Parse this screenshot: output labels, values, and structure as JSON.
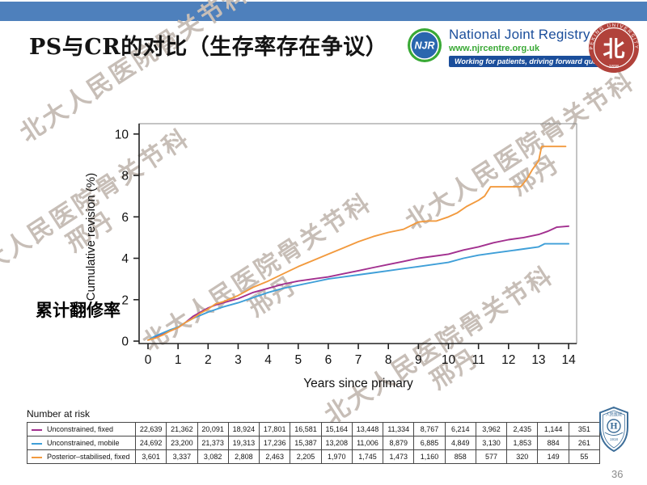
{
  "slide": {
    "title": "PS与CR的对比（生存率存在争议）",
    "page_number": "36",
    "accent_bar_color": "#4E80BC",
    "side_label": "累计翻修率",
    "watermark": {
      "line1": "北大人民医院骨关节科",
      "line2": "邢丹"
    }
  },
  "njr_logo": {
    "abbr": "NJR",
    "name": "National Joint Registry",
    "url": "www.njrcentre.org.uk",
    "tagline": "Working for patients, driving forward quality",
    "ring_color": "#39A935",
    "disc_color": "#2A66AE",
    "name_color": "#1B4E9B",
    "banner_color": "#1B4E9B"
  },
  "pku_seal": {
    "arc_text": "PEKING UNIVERSITY",
    "year": "1898",
    "glyph": "北",
    "color": "#B1423B"
  },
  "hospital_badge": {
    "top_text": "人民医院",
    "year": "1918",
    "glyph": "H",
    "color": "#3D6E99"
  },
  "chart_data": {
    "type": "line",
    "title": "",
    "xlabel": "Years since primary",
    "ylabel": "Cumulative revision (%)",
    "xlim": [
      0,
      14
    ],
    "ylim": [
      0,
      10
    ],
    "xticks": [
      0,
      1,
      2,
      3,
      4,
      5,
      6,
      7,
      8,
      9,
      10,
      11,
      12,
      13,
      14
    ],
    "yticks": [
      0,
      2,
      4,
      6,
      8,
      10
    ],
    "grid": false,
    "legend_position": "bottom-table",
    "series": [
      {
        "name": "Unconstrained, fixed",
        "color": "#A2308F",
        "x": [
          0,
          0.25,
          0.5,
          0.75,
          1,
          1.25,
          1.5,
          1.75,
          2,
          2.25,
          2.5,
          2.75,
          3,
          3.5,
          4,
          4.5,
          5,
          5.5,
          6,
          6.5,
          7,
          7.5,
          8,
          8.5,
          9,
          9.5,
          10,
          10.5,
          11,
          11.5,
          12,
          12.5,
          13,
          13.3,
          13.6,
          14
        ],
        "y": [
          0.05,
          0.2,
          0.35,
          0.5,
          0.65,
          0.9,
          1.2,
          1.4,
          1.6,
          1.75,
          1.85,
          1.95,
          2.05,
          2.35,
          2.55,
          2.75,
          2.9,
          3.0,
          3.1,
          3.25,
          3.4,
          3.55,
          3.7,
          3.85,
          4.0,
          4.1,
          4.2,
          4.4,
          4.55,
          4.75,
          4.9,
          5.0,
          5.15,
          5.3,
          5.5,
          5.55
        ]
      },
      {
        "name": "Unconstrained, mobile",
        "color": "#3F9FD8",
        "x": [
          0,
          0.25,
          0.5,
          0.75,
          1,
          1.25,
          1.5,
          1.75,
          2,
          2.5,
          3,
          3.5,
          4,
          4.5,
          5,
          5.5,
          6,
          6.5,
          7,
          7.5,
          8,
          8.5,
          9,
          9.5,
          10,
          10.5,
          11,
          11.5,
          12,
          12.5,
          13,
          13.2,
          14
        ],
        "y": [
          0.05,
          0.25,
          0.4,
          0.55,
          0.68,
          0.9,
          1.1,
          1.25,
          1.4,
          1.65,
          1.85,
          2.1,
          2.35,
          2.55,
          2.7,
          2.85,
          3.0,
          3.1,
          3.2,
          3.3,
          3.4,
          3.5,
          3.6,
          3.7,
          3.8,
          4.0,
          4.15,
          4.25,
          4.35,
          4.45,
          4.55,
          4.7,
          4.7
        ]
      },
      {
        "name": "Posterior–stabilised, fixed",
        "color": "#F29A3E",
        "x": [
          0,
          0.25,
          0.5,
          0.75,
          1,
          1.25,
          1.5,
          1.75,
          2,
          2.25,
          2.5,
          2.75,
          3,
          3.5,
          4,
          4.5,
          5,
          5.5,
          6,
          6.5,
          7,
          7.5,
          8,
          8.5,
          9,
          9.3,
          9.6,
          10,
          10.3,
          10.6,
          11,
          11.2,
          11.4,
          12.4,
          12.6,
          12.8,
          13,
          13.1,
          13.9
        ],
        "y": [
          0.05,
          0.15,
          0.3,
          0.5,
          0.65,
          0.9,
          1.1,
          1.35,
          1.55,
          1.8,
          1.9,
          2.05,
          2.2,
          2.6,
          2.9,
          3.25,
          3.6,
          3.9,
          4.2,
          4.5,
          4.8,
          5.05,
          5.25,
          5.4,
          5.75,
          5.8,
          5.8,
          6.0,
          6.2,
          6.5,
          6.8,
          7.0,
          7.45,
          7.45,
          7.8,
          8.3,
          8.7,
          9.4,
          9.4
        ]
      }
    ],
    "number_at_risk": {
      "title": "Number at risk",
      "rows": [
        {
          "label": "Unconstrained, fixed",
          "color": "#A2308F",
          "values": [
            "22,639",
            "21,362",
            "20,091",
            "18,924",
            "17,801",
            "16,581",
            "15,164",
            "13,448",
            "11,334",
            "8,767",
            "6,214",
            "3,962",
            "2,435",
            "1,144",
            "351"
          ]
        },
        {
          "label": "Unconstrained, mobile",
          "color": "#3F9FD8",
          "values": [
            "24,692",
            "23,200",
            "21,373",
            "19,313",
            "17,236",
            "15,387",
            "13,208",
            "11,006",
            "8,879",
            "6,885",
            "4,849",
            "3,130",
            "1,853",
            "884",
            "261"
          ]
        },
        {
          "label": "Posterior–stabilised, fixed",
          "color": "#F29A3E",
          "values": [
            "3,601",
            "3,337",
            "3,082",
            "2,808",
            "2,463",
            "2,205",
            "1,970",
            "1,745",
            "1,473",
            "1,160",
            "858",
            "577",
            "320",
            "149",
            "55"
          ]
        }
      ]
    }
  }
}
